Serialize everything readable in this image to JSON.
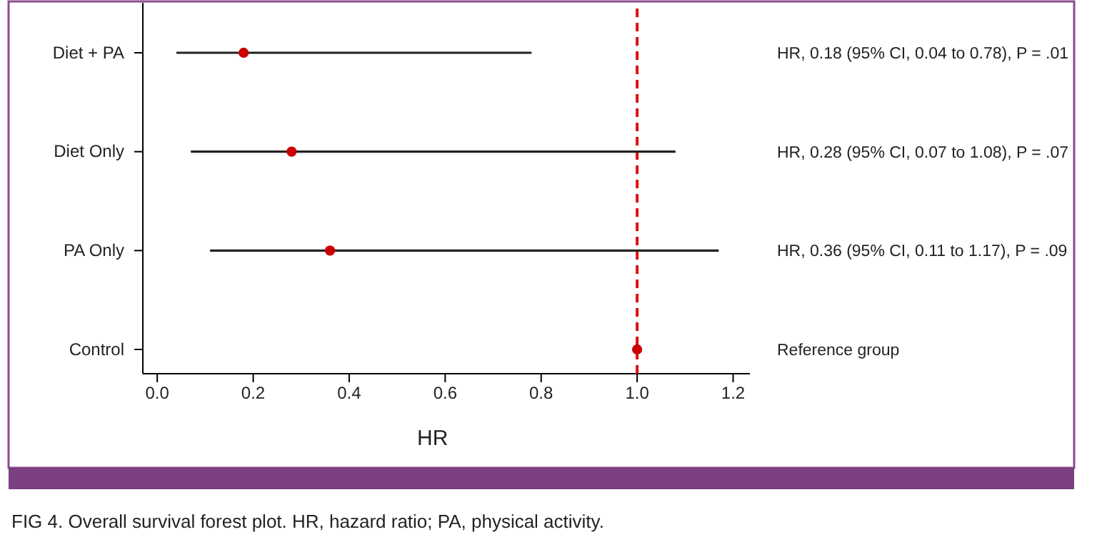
{
  "chart_data": {
    "type": "scatter",
    "orientation": "horizontal",
    "xlabel": "HR",
    "categories": [
      "Diet + PA",
      "Diet Only",
      "PA Only",
      "Control"
    ],
    "series": [
      {
        "color": "#cc0000",
        "values": [
          0.18,
          0.28,
          0.36,
          1.0
        ],
        "errors": [
          [
            0.04,
            0.78
          ],
          [
            0.07,
            1.08
          ],
          [
            0.11,
            1.17
          ],
          null
        ]
      }
    ],
    "marker": "circle",
    "xlim": [
      -0.03,
      1.235
    ],
    "xticks": [
      {
        "value": 0,
        "label": "0.0"
      },
      0.2,
      0.4,
      0.6,
      0.8,
      {
        "value": 1,
        "label": "1.0"
      },
      1.2
    ],
    "ref_lines": [
      {
        "axis": "x",
        "value": 1,
        "color": "#dd1111",
        "line_style": "dashed"
      }
    ],
    "grid": false,
    "annotations": [
      "HR, 0.18 (95% CI, 0.04 to 0.78), P = .01",
      "HR, 0.28 (95% CI, 0.07 to 1.08), P = .07",
      "HR, 0.36 (95% CI, 0.11 to 1.17), P = .09",
      "Reference group",
      "FIG 4. Overall survival forest plot. HR, hazard ratio; PA, physical activity."
    ]
  }
}
